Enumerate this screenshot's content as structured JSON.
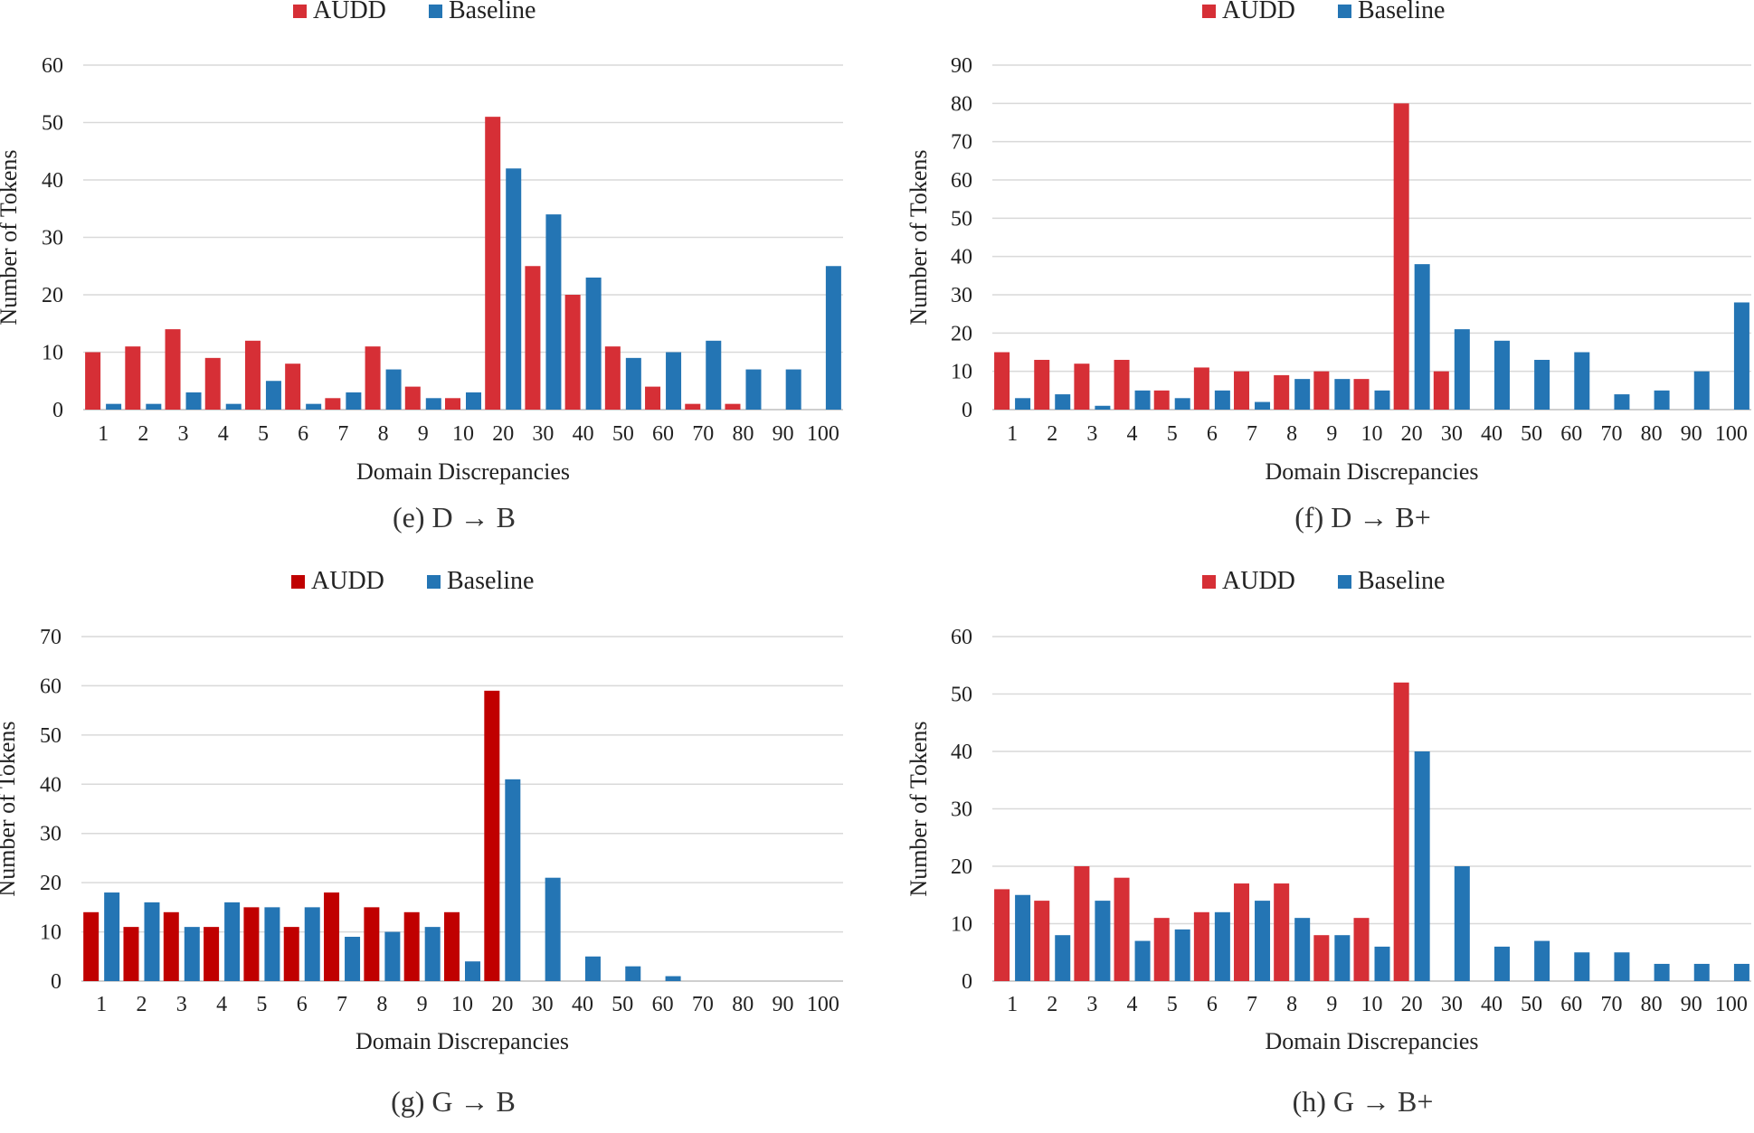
{
  "figure": {
    "xlabel": "Domain Discrepancies",
    "ylabel": "Number of Tokens",
    "legend": [
      "AUDD",
      "Baseline"
    ]
  },
  "colors": {
    "audd": "#d62f36",
    "audd_dark": "#c00000",
    "baseline": "#2475b4",
    "grid": "#d9d9d9",
    "text": "#222222"
  },
  "chart_data": [
    {
      "type": "bar",
      "id": "e",
      "caption": "(e) D → B",
      "categories": [
        "1",
        "2",
        "3",
        "4",
        "5",
        "6",
        "7",
        "8",
        "9",
        "10",
        "20",
        "30",
        "40",
        "50",
        "60",
        "70",
        "80",
        "90",
        "100"
      ],
      "xlabel": "Domain Discrepancies",
      "ylabel": "Number of Tokens",
      "ylim": [
        0,
        60
      ],
      "yticks": [
        0,
        10,
        20,
        30,
        40,
        50,
        60
      ],
      "grid": true,
      "legend_position": "top-center",
      "series": [
        {
          "name": "AUDD",
          "color": "#d62f36",
          "values": [
            10,
            11,
            14,
            9,
            12,
            8,
            2,
            11,
            4,
            2,
            51,
            25,
            20,
            11,
            4,
            1,
            1,
            0,
            0
          ]
        },
        {
          "name": "Baseline",
          "color": "#2475b4",
          "values": [
            1,
            1,
            3,
            1,
            5,
            1,
            3,
            7,
            2,
            3,
            42,
            34,
            23,
            9,
            10,
            12,
            7,
            7,
            25
          ]
        }
      ]
    },
    {
      "type": "bar",
      "id": "f",
      "caption": "(f) D → B+",
      "categories": [
        "1",
        "2",
        "3",
        "4",
        "5",
        "6",
        "7",
        "8",
        "9",
        "10",
        "20",
        "30",
        "40",
        "50",
        "60",
        "70",
        "80",
        "90",
        "100"
      ],
      "xlabel": "Domain Discrepancies",
      "ylabel": "Number of Tokens",
      "ylim": [
        0,
        90
      ],
      "yticks": [
        0,
        10,
        20,
        30,
        40,
        50,
        60,
        70,
        80,
        90
      ],
      "grid": true,
      "legend_position": "top-center",
      "series": [
        {
          "name": "AUDD",
          "color": "#d62f36",
          "values": [
            15,
            13,
            12,
            13,
            5,
            11,
            10,
            9,
            10,
            8,
            80,
            10,
            0,
            0,
            0,
            0,
            0,
            0,
            0
          ]
        },
        {
          "name": "Baseline",
          "color": "#2475b4",
          "values": [
            3,
            4,
            1,
            5,
            3,
            5,
            2,
            8,
            8,
            5,
            38,
            21,
            18,
            13,
            15,
            4,
            5,
            10,
            28
          ]
        }
      ]
    },
    {
      "type": "bar",
      "id": "g",
      "caption": "(g) G → B",
      "categories": [
        "1",
        "2",
        "3",
        "4",
        "5",
        "6",
        "7",
        "8",
        "9",
        "10",
        "20",
        "30",
        "40",
        "50",
        "60",
        "70",
        "80",
        "90",
        "100"
      ],
      "xlabel": "Domain Discrepancies",
      "ylabel": "Number of Tokens",
      "ylim": [
        0,
        70
      ],
      "yticks": [
        0,
        10,
        20,
        30,
        40,
        50,
        60,
        70
      ],
      "grid": true,
      "legend_position": "top-center",
      "series": [
        {
          "name": "AUDD",
          "color": "#c00000",
          "values": [
            14,
            11,
            14,
            11,
            15,
            11,
            18,
            15,
            14,
            14,
            59,
            0,
            0,
            0,
            0,
            0,
            0,
            0,
            0
          ]
        },
        {
          "name": "Baseline",
          "color": "#2475b4",
          "values": [
            18,
            16,
            11,
            16,
            15,
            15,
            9,
            10,
            11,
            4,
            41,
            21,
            5,
            3,
            1,
            0,
            0,
            0,
            0
          ]
        }
      ]
    },
    {
      "type": "bar",
      "id": "h",
      "caption": "(h) G → B+",
      "categories": [
        "1",
        "2",
        "3",
        "4",
        "5",
        "6",
        "7",
        "8",
        "9",
        "10",
        "20",
        "30",
        "40",
        "50",
        "60",
        "70",
        "80",
        "90",
        "100"
      ],
      "xlabel": "Domain Discrepancies",
      "ylabel": "Number of Tokens",
      "ylim": [
        0,
        60
      ],
      "yticks": [
        0,
        10,
        20,
        30,
        40,
        50,
        60
      ],
      "grid": true,
      "legend_position": "top-center",
      "series": [
        {
          "name": "AUDD",
          "color": "#d62f36",
          "values": [
            16,
            14,
            20,
            18,
            11,
            12,
            17,
            17,
            8,
            11,
            52,
            0,
            0,
            0,
            0,
            0,
            0,
            0,
            0
          ]
        },
        {
          "name": "Baseline",
          "color": "#2475b4",
          "values": [
            15,
            8,
            14,
            7,
            9,
            12,
            14,
            11,
            8,
            6,
            40,
            20,
            6,
            7,
            5,
            5,
            3,
            3,
            3
          ]
        }
      ]
    }
  ]
}
